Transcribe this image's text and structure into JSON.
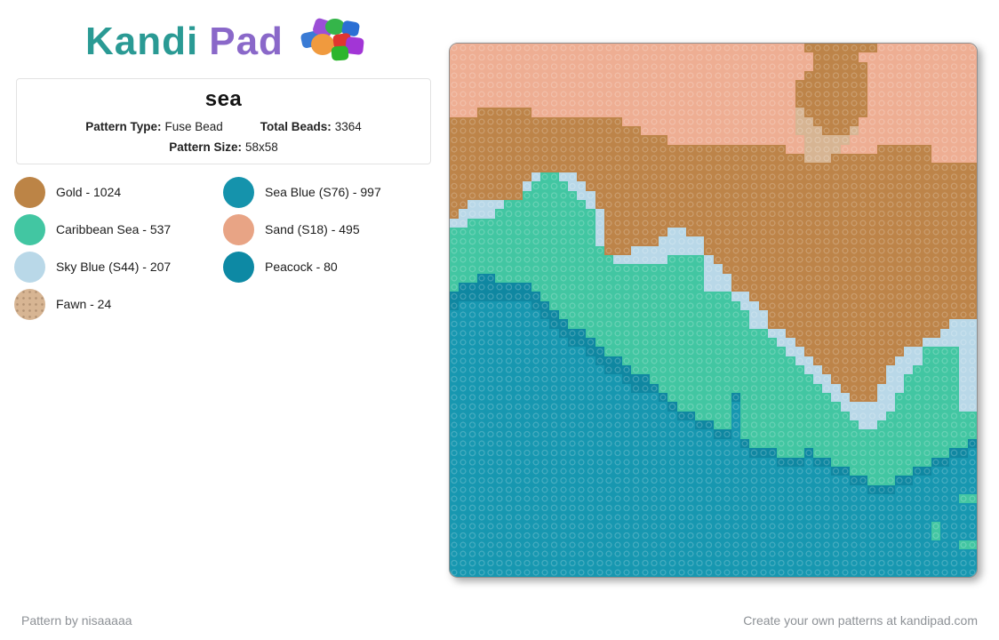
{
  "logo": {
    "kandi": "Kandi",
    "pad": "Pad"
  },
  "info_card": {
    "title": "sea",
    "pattern_type_label": "Pattern Type:",
    "pattern_type_value": "Fuse Bead",
    "total_beads_label": "Total Beads:",
    "total_beads_value": "3364",
    "pattern_size_label": "Pattern Size:",
    "pattern_size_value": "58x58"
  },
  "legend": {
    "left": [
      {
        "label": "Gold - 1024",
        "color": "#bc8446",
        "speckled": false
      },
      {
        "label": "Caribbean Sea - 537",
        "color": "#42c6a2",
        "speckled": false
      },
      {
        "label": "Sky Blue (S44) - 207",
        "color": "#b9d8e8",
        "speckled": false
      },
      {
        "label": "Fawn - 24",
        "color": "#d7b593",
        "speckled": true
      }
    ],
    "right": [
      {
        "label": "Sea Blue (S76) - 997",
        "color": "#1593ac",
        "speckled": false
      },
      {
        "label": "Sand (S18) - 495",
        "color": "#e8a485",
        "speckled": false
      },
      {
        "label": "Peacock - 80",
        "color": "#0d89a4",
        "speckled": false
      }
    ]
  },
  "footer": {
    "left": "Pattern by nisaaaaa",
    "right": "Create your own patterns at kandipad.com"
  },
  "chart_data": {
    "type": "heatmap",
    "title": "sea",
    "grid_size": "58x58",
    "total_beads": 3364,
    "palette": {
      "S": {
        "name": "Sand (S18)",
        "hex": "#eeae93"
      },
      "G": {
        "name": "Gold",
        "hex": "#bd8449"
      },
      "F": {
        "name": "Fawn",
        "hex": "#d7b593"
      },
      "Y": {
        "name": "Sky Blue (S44)",
        "hex": "#b9d8e8"
      },
      "C": {
        "name": "Caribbean Sea",
        "hex": "#42c6a2"
      },
      "B": {
        "name": "Sea Blue (S76)",
        "hex": "#1797b0"
      },
      "P": {
        "name": "Peacock",
        "hex": "#0f87a1"
      }
    },
    "rows": [
      "SSSSSSSSSSSSSSSSSSSSSSSSSSSSSSSSSSSSSSSGGGGGGGGSSSSSSSSSSS",
      "SSSSSSSSSSSSSSSSSSSSSSSSSSSSSSSSSSSSSSSSGGGGGSSSSSSSSSSSSS",
      "SSSSSSSSSSSSSSSSSSSSSSSSSSSSSSSSSSSSSSSSGGGGGGSSSSSSSSSSSS",
      "SSSSSSSSSSSSSSSSSSSSSSSSSSSSSSSSSSSSSSSGGGGGGGSSSSSSSSSSSS",
      "SSSSSSSSSSSSSSSSSSSSSSSSSSSSSSSSSSSSSSGGGGGGGGSSSSSSSSSSSS",
      "SSSSSSSSSSSSSSSSSSSSSSSSSSSSSSSSSSSSSSGGGGGGGGSSSSSSSSSSSS",
      "SSSSSSSSSSSSSSSSSSSSSSSSSSSSSSSSSSSSSSGGGGGGGGSSSSSSSSSSSS",
      "SSSGGGGGGSSSSSSSSSSSSSSSSSSSSSSSSSSSSSFGGGGGGGSSSSSSSSSSSS",
      "GGGGGGGGGGGGGGGGGGGSSSSSSSSSSSSSSSSSSSFFGGGGGSSSSSSSSSSSSS",
      "GGGGGGGGGGGGGGGGGGGGGSSSSSSSSSSSSSSSSSFFFGGGFSSSSSSSSSSSSS",
      "GGGGGGGGGGGGGGGGGGGGGGGGSSSSSSSSSSSSSSSFFFFFSSSSSSSSSSSSSS",
      "GGGGGGGGGGGGGGGGGGGGGGGGGGGGGGGGGGGGGSSFFFFSSSSGGGGGGSSSSS",
      "GGGGGGGGGGGGGGGGGGGGGGGGGGGGGGGGGGGGGGGFFFGGGGGGGGGGGSSSSS",
      "GGGGGGGGGGGGGGGGGGGGGGGGGGGGGGGGGGGGGGGGGGGGGGGGGGGGGGGGGG",
      "GGGGGGGGGYCCYYGGGGGGGGGGGGGGGGGGGGGGGGGGGGGGGGGGGGGGGGGGGG",
      "GGGGGGGGYCCCCYYGGGGGGGGGGGGGGGGGGGGGGGGGGGGGGGGGGGGGGGGGGG",
      "GGGGGGGGCCCCCCYYGGGGGGGGGGGGGGGGGGGGGGGGGGGGGGGGGGGGGGGGGG",
      "GGYYYYCCCCCCCCCYGGGGGGGGGGGGGGGGGGGGGGGGGGGGGGGGGGGGGGGGGG",
      "GYYYYCCCCCCCCCCCYGGGGGGGGGGGGGGGGGGGGGGGGGGGGGGGGGGGGGGGGG",
      "YYCCCCCCCCCCCCCCYGGGGGGGGGGGGGGGGGGGGGGGGGGGGGGGGGGGGGGGGG",
      "CCCCCCCCCCCCCCCCYGGGGGGGYYGGGGGGGGGGGGGGGGGGGGGGGGGGGGGGGG",
      "CCCCCCCCCCCCCCCCYGGGGGGYYYYYGGGGGGGGGGGGGGGGGGGGGGGGGGGGGG",
      "CCCCCCCCCCCCCCCCCGGGYYYYYYYYGGGGGGGGGGGGGGGGGGGGGGGGGGGGGG",
      "CCCCCCCCCCCCCCCCCCYYYYYYCCCCYGGGGGGGGGGGGGGGGGGGGGGGGGGGGG",
      "CCCCCCCCCCCCCCCCCCCCCCCCCCCCYYGGGGGGGGGGGGGGGGGGGGGGGGGGGG",
      "CCCPPCCCCCCCCCCCCCCCCCCCCCCCYYYGGGGGGGGGGGGGGGGGGGGGGGGGGG",
      "CPPPPPPPPCCCCCCCCCCCCCCCCCCCYYYGGGGGGGGGGGGGGGGGGGGGGGGGGG",
      "PPPPPPPPPPCCCCCCCCCCCCCCCCCCCCCYYGGGGGGGGGGGGGGGGGGGGGGGGG",
      "PBBBBBBBBPPCCCCCCCCCCCCCCCCCCCCCYYGGGGGGGGGGGGGGGGGGGGGGGG",
      "BBBBBBBBBBPPCCCCCCCCCCCCCCCCCCCCCYYGGGGGGGGGGGGGGGGGGGGGGG",
      "BBBBBBBBBBBPPCCCCCCCCCCCCCCCCCCCCYYGGGGGGGGGGGGGGGGGGGGYY",
      "BBBBBBBBBBBBPPPCCCCCCCCCCCCCCCCCCCCYYGGGGGGGGGGGGGGGGGYYYY",
      "BBBBBBBBBBBBBPPPCCCCCCCCCCCCCCCCCCCCYYGGGGGGGGGGGGGGYYYYYY",
      "BBBBBBBBBBBBBBBPPCCCCCCCCCCCCCCCCCCCCYYGGGGGGGGGGGYYCCCCYY",
      "BBBBBBBBBBBBBBBBPPPCCCCCCCCCCCCCCCCCCCYYGGGGGGGGGYYYCCCCYY",
      "BBBBBBBBBBBBBBBBBPPPCCCCCCCCCCCCCCCCCCCYYGGGGGGGYYYCCCCCYY",
      "BBBBBBBBBBBBBBBBBBBPPPCCCCCCCCCCCCCCCCCCYYGGGGGGYYCCCCCCYY",
      "BBBBBBBBBBBBBBBBBBBBPPPCCCCCCCCCCCCCCCCCCYYGGGGYYYCCCCCCYY",
      "BBBBBBBBBBBBBBBBBBBBBBBPCCCCCCCPCCCCCCCCCCYYGGGYYCCCCCCCYY",
      "BBBBBBBBBBBBBBBBBBBBBBBBPCCCCCCBCCCCCCCCCCCYYYYYYCCCCCCCYY",
      "BBBBBBBBBBBBBBBBBBBBBBBBBPPCCCCBCCCCCCCCCCCCYYYYCCCCCCCCCC",
      "BBBBBBBBBBBBBBBBBBBBBBBBBBBPPCCBCCCCCCCCCCCCCYYCCCCCCCCCCC",
      "BBBBBBBBBBBBBBBBBBBBBBBBBBBBBPPBCCCCCCCCCCCCCCCCCCCCCCCCCC",
      "BBBBBBBBBBBBBBBBBBBBBBBBBBBBBBBBPCCCCCCCCCCCCCCCCCCCCCCCCP",
      "BBBBBBBBBBBBBBBBBBBBBBBBBBBBBBBBBPPPCCCPCCCCCCCCCCCCCCCPPB",
      "BBBBBBBBBBBBBBBBBBBBBBBBBBBBBBBBBBBBPPPBPPCCCCCCCCCCCPPBBB",
      "BBBBBBBBBBBBBBBBBBBBBBBBBBBBBBBBBBBBBBBBBBPPCCCCCCCPPBBBBB",
      "BBBBBBBBBBBBBBBBBBBBBBBBBBBBBBBBBBBBBBBBBBBBPPCCCPPBBBBBBB",
      "BBBBBBBBBBBBBBBBBBBBBBBBBBBBBBBBBBBBBBBBBBBBBBPPPBBBBBBBBB",
      "BBBBBBBBBBBBBBBBBBBBBBBBBBBBBBBBBBBBBBBBBBBBBBBBBBBBBBBBC",
      "BBBBBBBBBBBBBBBBBBBBBBBBBBBBBBBBBBBBBBBBBBBBBBBBBBBBBBBBBB",
      "BBBBBBBBBBBBBBBBBBBBBBBBBBBBBBBBBBBBBBBBBBBBBBBBBBBBBBBBBB",
      "BBBBBBBBBBBBBBBBBBBBBBBBBBBBBBBBBBBBBBBBBBBBBBBBBBBBBCBB",
      "BBBBBBBBBBBBBBBBBBBBBBBBBBBBBBBBBBBBBBBBBBBBBBBBBBBBBCBB",
      "BBBBBBBBBBBBBBBBBBBBBBBBBBBBBBBBBBBBBBBBBBBBBBBBBBBBBBBBC",
      "BBBBBBBBBBBBBBBBBBBBBBBBBBBBBBBBBBBBBBBBBBBBBBBBBBBBBBBBBB",
      "BBBBBBBBBBBBBBBBBBBBBBBBBBBBBBBBBBBBBBBBBBBBBBBBBBBBBBBBBB",
      "BBBBBBBBBBBBBBBBBBBBBBBBBBBBBBBBBBBBBBBBBBBBBBBBBBBBBBBBBB"
    ]
  }
}
